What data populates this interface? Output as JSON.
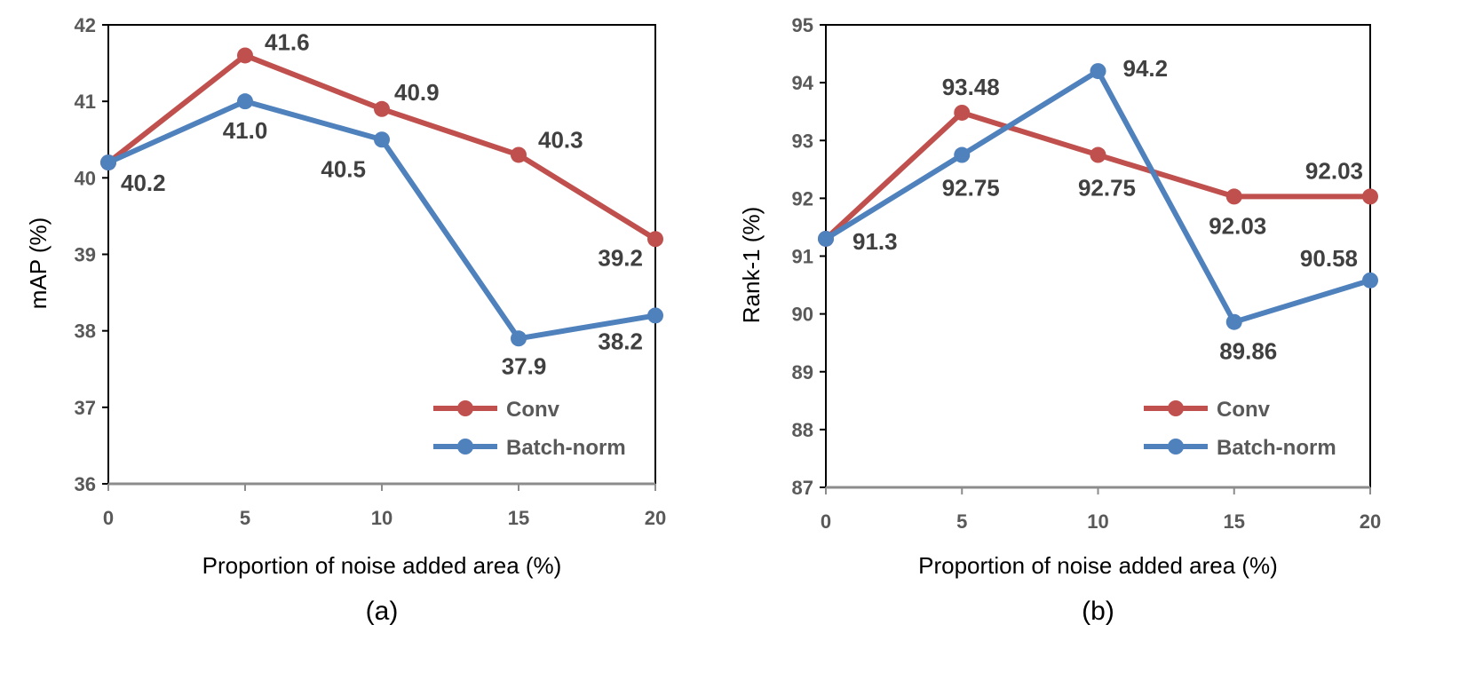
{
  "chart_data": [
    {
      "type": "line",
      "panel_label": "(a)",
      "title": "",
      "xlabel": "Proportion of noise added area (%)",
      "ylabel": "mAP (%)",
      "x": [
        0,
        5,
        10,
        15,
        20
      ],
      "x_tick_labels": [
        "0",
        "5",
        "10",
        "15",
        "20"
      ],
      "ylim": [
        36,
        42
      ],
      "y_tick_labels": [
        "36",
        "37",
        "38",
        "39",
        "40",
        "41",
        "42"
      ],
      "grid": false,
      "legend_position": "bottom-right",
      "series": [
        {
          "name": "Conv",
          "color": "#C0504D",
          "values": [
            40.2,
            41.6,
            40.9,
            40.3,
            39.2
          ],
          "labels": [
            "",
            "41.6",
            "40.9",
            "40.3",
            "39.2"
          ]
        },
        {
          "name": "Batch-norm",
          "color": "#4F81BD",
          "values": [
            40.2,
            41.0,
            40.5,
            37.9,
            38.2
          ],
          "labels": [
            "40.2",
            "41.0",
            "40.5",
            "37.9",
            "38.2"
          ]
        }
      ]
    },
    {
      "type": "line",
      "panel_label": "(b)",
      "title": "",
      "xlabel": "Proportion of noise added area (%)",
      "ylabel": "Rank-1 (%)",
      "x": [
        0,
        5,
        10,
        15,
        20
      ],
      "x_tick_labels": [
        "0",
        "5",
        "10",
        "15",
        "20"
      ],
      "ylim": [
        87,
        95
      ],
      "y_tick_labels": [
        "87",
        "88",
        "89",
        "90",
        "91",
        "92",
        "93",
        "94",
        "95"
      ],
      "grid": false,
      "legend_position": "bottom-right",
      "series": [
        {
          "name": "Conv",
          "color": "#C0504D",
          "values": [
            91.3,
            93.48,
            92.75,
            92.03,
            92.03
          ],
          "labels": [
            "",
            "93.48",
            "92.75",
            "92.03",
            "92.03"
          ]
        },
        {
          "name": "Batch-norm",
          "color": "#4F81BD",
          "values": [
            91.3,
            92.75,
            94.2,
            89.86,
            90.58
          ],
          "labels": [
            "91.3",
            "92.75",
            "94.2",
            "89.86",
            "90.58"
          ]
        }
      ]
    }
  ]
}
